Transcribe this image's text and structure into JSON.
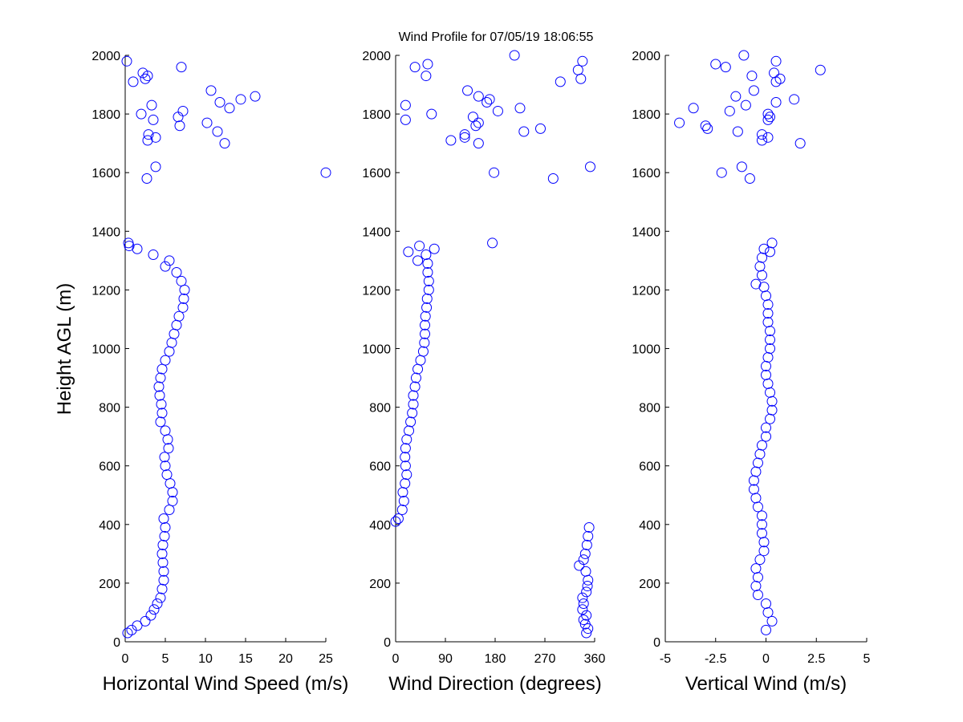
{
  "chart_data": [
    {
      "type": "scatter",
      "title": "Wind Profile for  07/05/19 18:06:55",
      "ylabel": "Height AGL (m)",
      "xlabel": "Horizontal Wind Speed (m/s)",
      "color": "#0000ff",
      "xlim": [
        0,
        25
      ],
      "xticks": [
        0,
        5,
        10,
        15,
        20,
        25
      ],
      "ylim": [
        0,
        2000
      ],
      "yticks": [
        0,
        200,
        400,
        600,
        800,
        1000,
        1200,
        1400,
        1600,
        1800,
        2000
      ],
      "x": [
        0.3,
        0.8,
        1.5,
        2.5,
        3.2,
        3.6,
        4.0,
        4.4,
        4.6,
        4.8,
        4.8,
        4.7,
        4.6,
        4.7,
        4.9,
        5.0,
        4.8,
        5.5,
        5.9,
        5.9,
        5.6,
        5.2,
        5.0,
        4.9,
        5.4,
        5.3,
        5.0,
        4.4,
        4.6,
        4.5,
        4.3,
        4.2,
        4.4,
        4.6,
        5.0,
        5.5,
        5.8,
        6.1,
        6.4,
        6.7,
        7.2,
        7.3,
        7.4,
        7.0,
        6.4,
        5.0,
        5.5,
        3.5,
        1.5,
        0.5,
        0.4,
        2.7,
        3.8,
        25,
        12.4,
        2.8,
        2.9,
        3.8,
        6.8,
        10.2,
        3.5,
        6.6,
        2.0,
        7.2,
        11.5,
        13,
        3.3,
        11.8,
        14.4,
        16.2,
        10.7,
        1.0,
        2.5,
        2.8,
        2.2,
        7.0,
        0.2
      ],
      "y": [
        30,
        40,
        55,
        70,
        90,
        110,
        130,
        150,
        180,
        210,
        240,
        270,
        300,
        330,
        360,
        390,
        420,
        450,
        480,
        510,
        540,
        570,
        600,
        630,
        660,
        690,
        720,
        750,
        780,
        810,
        840,
        870,
        900,
        930,
        960,
        990,
        1020,
        1050,
        1080,
        1110,
        1140,
        1170,
        1200,
        1230,
        1260,
        1280,
        1300,
        1320,
        1340,
        1350,
        1360,
        1580,
        1620,
        1600,
        1700,
        1710,
        1730,
        1720,
        1760,
        1770,
        1780,
        1790,
        1800,
        1810,
        1740,
        1820,
        1830,
        1840,
        1850,
        1860,
        1880,
        1910,
        1920,
        1930,
        1940,
        1960,
        1980
      ]
    },
    {
      "type": "scatter",
      "xlabel": "Wind Direction (degrees)",
      "color": "#0000ff",
      "xlim": [
        0,
        360
      ],
      "xticks": [
        0,
        90,
        180,
        270,
        360
      ],
      "ylim": [
        0,
        2000
      ],
      "yticks": [
        0,
        200,
        400,
        600,
        800,
        1000,
        1200,
        1400,
        1600,
        1800,
        2000
      ],
      "x": [
        345,
        348,
        343,
        340,
        345,
        338,
        340,
        338,
        345,
        347,
        348,
        344,
        332,
        340,
        343,
        346,
        348,
        350,
        0,
        5,
        12,
        15,
        13,
        17,
        20,
        18,
        17,
        18,
        20,
        24,
        27,
        30,
        32,
        32,
        35,
        37,
        40,
        45,
        50,
        52,
        53,
        53,
        54,
        56,
        57,
        60,
        60,
        58,
        58,
        40,
        55,
        23,
        70,
        43,
        175,
        285,
        352,
        178,
        100,
        150,
        125,
        125,
        232,
        262,
        145,
        150,
        18,
        140,
        65,
        225,
        185,
        18,
        165,
        170,
        150,
        130,
        298,
        335,
        330,
        35,
        55,
        58,
        338,
        215
      ],
      "y": [
        30,
        45,
        60,
        75,
        90,
        110,
        130,
        150,
        170,
        190,
        210,
        240,
        260,
        280,
        300,
        330,
        360,
        390,
        410,
        420,
        450,
        480,
        510,
        540,
        570,
        600,
        630,
        660,
        690,
        720,
        750,
        780,
        810,
        840,
        870,
        900,
        930,
        960,
        990,
        1020,
        1050,
        1080,
        1110,
        1140,
        1170,
        1200,
        1230,
        1260,
        1290,
        1300,
        1320,
        1330,
        1340,
        1350,
        1360,
        1580,
        1620,
        1600,
        1710,
        1700,
        1720,
        1730,
        1740,
        1750,
        1760,
        1770,
        1780,
        1790,
        1800,
        1820,
        1810,
        1830,
        1840,
        1850,
        1860,
        1880,
        1910,
        1920,
        1950,
        1960,
        1930,
        1970,
        1980,
        2000
      ]
    },
    {
      "type": "scatter",
      "xlabel": "Vertical Wind (m/s)",
      "color": "#0000ff",
      "xlim": [
        -5,
        5
      ],
      "xticks": [
        -5,
        -2.5,
        0,
        2.5,
        5
      ],
      "ylim": [
        0,
        2000
      ],
      "yticks": [
        0,
        200,
        400,
        600,
        800,
        1000,
        1200,
        1400,
        1600,
        1800,
        2000
      ],
      "x": [
        0.0,
        0.3,
        0.1,
        0.0,
        -0.4,
        -0.5,
        -0.4,
        -0.5,
        -0.3,
        -0.1,
        -0.1,
        -0.2,
        -0.2,
        -0.2,
        -0.4,
        -0.5,
        -0.6,
        -0.6,
        -0.5,
        -0.4,
        -0.3,
        -0.2,
        0.0,
        0.0,
        0.2,
        0.3,
        0.3,
        0.2,
        0.1,
        0.0,
        0.0,
        0.1,
        0.2,
        0.2,
        0.2,
        0.1,
        0.1,
        0.1,
        0.0,
        -0.1,
        -0.5,
        -0.2,
        -0.3,
        -0.2,
        0.2,
        -0.1,
        0.3,
        -0.8,
        -1.2,
        -2.2,
        1.7,
        -0.2,
        0.1,
        -0.2,
        -1.4,
        -2.9,
        -3.0,
        -4.3,
        0.1,
        0.2,
        0.1,
        -1.8,
        -3.6,
        -1.0,
        0.5,
        1.4,
        -1.5,
        -0.6,
        0.5,
        0.7,
        -0.7,
        0.4,
        2.7,
        -2.0,
        -2.5,
        0.5,
        -1.1
      ],
      "y": [
        40,
        70,
        100,
        130,
        160,
        190,
        220,
        250,
        280,
        310,
        340,
        370,
        400,
        430,
        460,
        490,
        520,
        550,
        580,
        610,
        640,
        670,
        700,
        730,
        760,
        790,
        820,
        850,
        880,
        910,
        940,
        970,
        1000,
        1030,
        1060,
        1090,
        1120,
        1150,
        1180,
        1210,
        1220,
        1250,
        1280,
        1310,
        1330,
        1340,
        1360,
        1580,
        1620,
        1600,
        1700,
        1710,
        1720,
        1730,
        1740,
        1750,
        1760,
        1770,
        1780,
        1790,
        1800,
        1810,
        1820,
        1830,
        1840,
        1850,
        1860,
        1880,
        1910,
        1920,
        1930,
        1940,
        1950,
        1960,
        1970,
        1980,
        2000
      ]
    }
  ]
}
